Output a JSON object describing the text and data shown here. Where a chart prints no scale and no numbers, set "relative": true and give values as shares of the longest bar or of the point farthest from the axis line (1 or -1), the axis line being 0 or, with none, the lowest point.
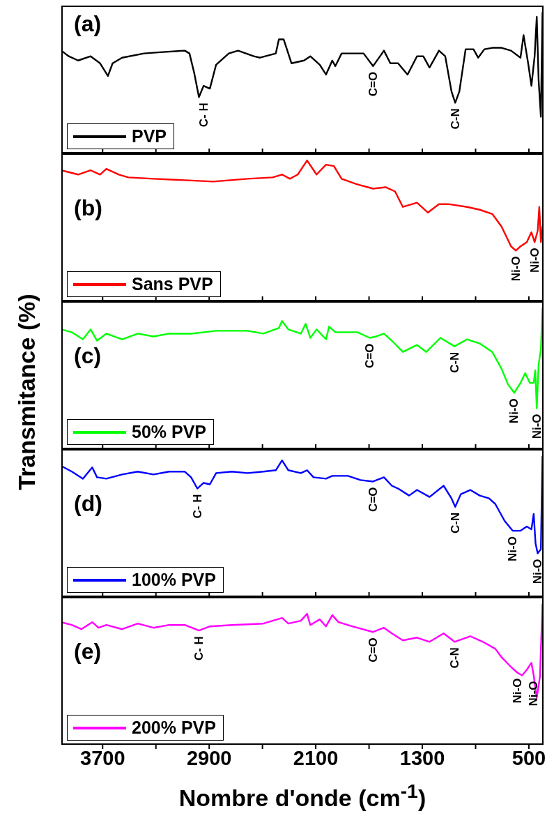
{
  "chart_data": [
    {
      "type": "line",
      "relative": true,
      "xlim": [
        4010,
        390
      ],
      "xticks": [
        3700,
        {
          "value": 3300,
          "label": null
        },
        2900,
        {
          "value": 2500,
          "label": null
        },
        2100,
        {
          "value": 1700,
          "label": null
        },
        1300,
        {
          "value": 900,
          "label": null
        },
        500
      ],
      "tick_labels": false,
      "legend": "bottom left",
      "annotations": [
        "(a)",
        {
          "text": "C- H",
          "x": 2942,
          "y": 0.4
        },
        {
          "text": "C=O",
          "x": 1670,
          "y": 0.62
        },
        {
          "text": "C-N",
          "x": 1053,
          "y": 0.36
        }
      ],
      "series": [
        {
          "name": "PVP",
          "color": "#000000",
          "x": [
            4010,
            3954,
            3884,
            3790,
            3719,
            3660,
            3625,
            3554,
            3389,
            3248,
            3083,
            3048,
            3012,
            2977,
            2942,
            2895,
            2848,
            2753,
            2683,
            2565,
            2518,
            2400,
            2377,
            2341,
            2282,
            2188,
            2141,
            2070,
            2023,
            1976,
            1953,
            1906,
            1811,
            1741,
            1670,
            1588,
            1540,
            1482,
            1411,
            1340,
            1293,
            1246,
            1175,
            1128,
            1081,
            1053,
            1022,
            975,
            916,
            881,
            834,
            775,
            705,
            634,
            563,
            540,
            504,
            481,
            457,
            441,
            427,
            410,
            398,
            390
          ],
          "values": [
            0.73,
            0.69,
            0.66,
            0.69,
            0.64,
            0.55,
            0.64,
            0.68,
            0.71,
            0.72,
            0.73,
            0.71,
            0.57,
            0.4,
            0.48,
            0.46,
            0.63,
            0.71,
            0.73,
            0.69,
            0.68,
            0.71,
            0.81,
            0.81,
            0.64,
            0.66,
            0.69,
            0.63,
            0.56,
            0.66,
            0.62,
            0.71,
            0.71,
            0.71,
            0.62,
            0.73,
            0.64,
            0.64,
            0.56,
            0.69,
            0.69,
            0.61,
            0.73,
            0.69,
            0.44,
            0.36,
            0.44,
            0.74,
            0.74,
            0.68,
            0.74,
            0.75,
            0.75,
            0.73,
            0.68,
            0.84,
            0.63,
            0.48,
            0.69,
            0.97,
            0.52,
            0.26,
            1,
            0.73
          ]
        }
      ]
    },
    {
      "type": "line",
      "relative": true,
      "xlim": [
        4010,
        390
      ],
      "xticks": [
        3700,
        {
          "value": 3300,
          "label": null
        },
        2900,
        {
          "value": 2500,
          "label": null
        },
        2100,
        {
          "value": 1700,
          "label": null
        },
        1300,
        {
          "value": 900,
          "label": null
        },
        500
      ],
      "tick_labels": false,
      "legend": "bottom left",
      "annotations": [
        "(b)",
        {
          "text": "Ni-O",
          "x": 598,
          "y": 0.36
        },
        {
          "text": "Ni-O",
          "x": 457,
          "y": 0.42
        }
      ],
      "series": [
        {
          "name": "Sans PVP",
          "color": "#ff0000",
          "x": [
            4010,
            3884,
            3790,
            3719,
            3672,
            3578,
            3507,
            3318,
            3083,
            2871,
            2612,
            2424,
            2353,
            2294,
            2235,
            2165,
            2094,
            2023,
            1964,
            1906,
            1788,
            1670,
            1576,
            1505,
            1446,
            1340,
            1258,
            1175,
            1105,
            964,
            869,
            775,
            705,
            634,
            598,
            563,
            516,
            481,
            457,
            434,
            422,
            410,
            398,
            390
          ],
          "values": [
            0.93,
            0.9,
            0.93,
            0.9,
            0.94,
            0.9,
            0.88,
            0.87,
            0.86,
            0.85,
            0.87,
            0.88,
            0.9,
            0.87,
            0.9,
            1,
            0.9,
            0.97,
            0.96,
            0.87,
            0.83,
            0.8,
            0.81,
            0.78,
            0.67,
            0.7,
            0.63,
            0.69,
            0.69,
            0.67,
            0.65,
            0.62,
            0.53,
            0.39,
            0.36,
            0.39,
            0.42,
            0.49,
            0.42,
            0.5,
            0.67,
            0.42,
            0.53,
            0.52
          ]
        }
      ]
    },
    {
      "type": "line",
      "relative": true,
      "xlim": [
        4010,
        390
      ],
      "xticks": [
        3700,
        {
          "value": 3300,
          "label": null
        },
        2900,
        {
          "value": 2500,
          "label": null
        },
        2100,
        {
          "value": 1700,
          "label": null
        },
        1300,
        {
          "value": 900,
          "label": null
        },
        500
      ],
      "tick_labels": false,
      "legend": "bottom left",
      "ylabel": "Transmitance (%)",
      "annotations": [
        "(c)",
        {
          "text": "C=O",
          "x": 1694,
          "y": 0.79
        },
        {
          "text": "C-N",
          "x": 1058,
          "y": 0.73
        },
        {
          "text": "Ni-O",
          "x": 610,
          "y": 0.4
        },
        {
          "text": "Ni-O",
          "x": 441,
          "y": 0.29
        }
      ],
      "series": [
        {
          "name": "50% PVP",
          "color": "#00ff00",
          "x": [
            4010,
            3931,
            3848,
            3790,
            3742,
            3672,
            3554,
            3436,
            3318,
            3201,
            3036,
            2848,
            2612,
            2494,
            2377,
            2353,
            2306,
            2212,
            2176,
            2141,
            2094,
            2023,
            2000,
            1953,
            1788,
            1694,
            1646,
            1588,
            1529,
            1446,
            1340,
            1270,
            1164,
            1058,
            964,
            869,
            775,
            705,
            657,
            610,
            563,
            528,
            493,
            464,
            452,
            441,
            427,
            410,
            398
          ],
          "values": [
            0.85,
            0.83,
            0.78,
            0.85,
            0.77,
            0.82,
            0.78,
            0.82,
            0.8,
            0.82,
            0.82,
            0.84,
            0.84,
            0.82,
            0.86,
            0.91,
            0.85,
            0.82,
            0.89,
            0.79,
            0.85,
            0.78,
            0.87,
            0.83,
            0.83,
            0.79,
            0.8,
            0.82,
            0.77,
            0.69,
            0.74,
            0.69,
            0.79,
            0.73,
            0.78,
            0.75,
            0.69,
            0.57,
            0.46,
            0.4,
            0.47,
            0.54,
            0.47,
            0.47,
            0.56,
            0.29,
            0.6,
            0.71,
            1
          ]
        }
      ]
    },
    {
      "type": "line",
      "relative": true,
      "xlim": [
        4010,
        390
      ],
      "xticks": [
        3700,
        {
          "value": 3300,
          "label": null
        },
        2900,
        {
          "value": 2500,
          "label": null
        },
        2100,
        {
          "value": 1700,
          "label": null
        },
        1300,
        {
          "value": 900,
          "label": null
        },
        500
      ],
      "tick_labels": false,
      "legend": "bottom left",
      "annotations": [
        "(d)",
        {
          "text": "C- H",
          "x": 2989,
          "y": 0.77
        },
        {
          "text": "C=O",
          "x": 1670,
          "y": 0.82
        },
        {
          "text": "C-N",
          "x": 1053,
          "y": 0.64
        },
        {
          "text": "Ni-O",
          "x": 622,
          "y": 0.47
        },
        {
          "text": "Ni-O",
          "x": 434,
          "y": 0.31
        }
      ],
      "series": [
        {
          "name": "100% PVP",
          "color": "#0000ff",
          "x": [
            4010,
            3931,
            3848,
            3778,
            3742,
            3672,
            3554,
            3436,
            3318,
            3201,
            3083,
            3036,
            2989,
            2942,
            2895,
            2848,
            2730,
            2612,
            2494,
            2400,
            2353,
            2306,
            2212,
            2165,
            2117,
            2023,
            1976,
            1858,
            1764,
            1670,
            1588,
            1529,
            1482,
            1399,
            1340,
            1246,
            1140,
            1081,
            1053,
            1011,
            940,
            869,
            799,
            752,
            682,
            622,
            563,
            516,
            481,
            464,
            450,
            434,
            410,
            398
          ],
          "values": [
            0.93,
            0.89,
            0.84,
            0.92,
            0.85,
            0.84,
            0.87,
            0.89,
            0.87,
            0.89,
            0.89,
            0.85,
            0.77,
            0.81,
            0.8,
            0.88,
            0.89,
            0.88,
            0.89,
            0.9,
            0.97,
            0.9,
            0.88,
            0.9,
            0.85,
            0.84,
            0.86,
            0.86,
            0.83,
            0.82,
            0.85,
            0.79,
            0.77,
            0.72,
            0.76,
            0.71,
            0.79,
            0.7,
            0.64,
            0.73,
            0.76,
            0.72,
            0.7,
            0.66,
            0.54,
            0.47,
            0.47,
            0.5,
            0.48,
            0.59,
            0.38,
            0.31,
            0.34,
            1
          ]
        }
      ]
    },
    {
      "type": "line",
      "relative": true,
      "xlim": [
        4010,
        390
      ],
      "xticks": [
        3700,
        {
          "value": 3300,
          "label": null
        },
        2900,
        {
          "value": 2500,
          "label": null
        },
        2100,
        {
          "value": 1700,
          "label": null
        },
        1300,
        {
          "value": 900,
          "label": null
        },
        500
      ],
      "tick_labels": "x",
      "legend": "bottom left",
      "xlabel": "Nombre d'onde (cm$^{-1}$)",
      "annotations": [
        "(e)",
        {
          "text": "C- H",
          "x": 2977,
          "y": 0.81
        },
        {
          "text": "C=O",
          "x": 1670,
          "y": 0.8
        },
        {
          "text": "C-N",
          "x": 1058,
          "y": 0.73
        },
        {
          "text": "Ni-O",
          "x": 587,
          "y": 0.51
        },
        {
          "text": "Ni-O",
          "x": 464,
          "y": 0.49
        }
      ],
      "series": [
        {
          "name": "200% PVP",
          "color": "#ff00ff",
          "x": [
            4010,
            3931,
            3860,
            3778,
            3731,
            3672,
            3554,
            3436,
            3318,
            3201,
            3083,
            2977,
            2895,
            2730,
            2494,
            2353,
            2306,
            2212,
            2165,
            2141,
            2070,
            2023,
            1976,
            1929,
            1788,
            1670,
            1588,
            1529,
            1446,
            1340,
            1246,
            1140,
            1058,
            940,
            846,
            752,
            705,
            634,
            587,
            551,
            516,
            481,
            464,
            441,
            417,
            398
          ],
          "values": [
            0.87,
            0.85,
            0.82,
            0.87,
            0.83,
            0.85,
            0.82,
            0.86,
            0.83,
            0.85,
            0.85,
            0.81,
            0.84,
            0.85,
            0.86,
            0.9,
            0.86,
            0.88,
            0.93,
            0.85,
            0.89,
            0.84,
            0.92,
            0.87,
            0.83,
            0.8,
            0.83,
            0.79,
            0.74,
            0.76,
            0.73,
            0.79,
            0.73,
            0.77,
            0.73,
            0.68,
            0.62,
            0.55,
            0.51,
            0.49,
            0.53,
            0.58,
            0.49,
            0.33,
            0.48,
            1
          ]
        }
      ]
    }
  ]
}
